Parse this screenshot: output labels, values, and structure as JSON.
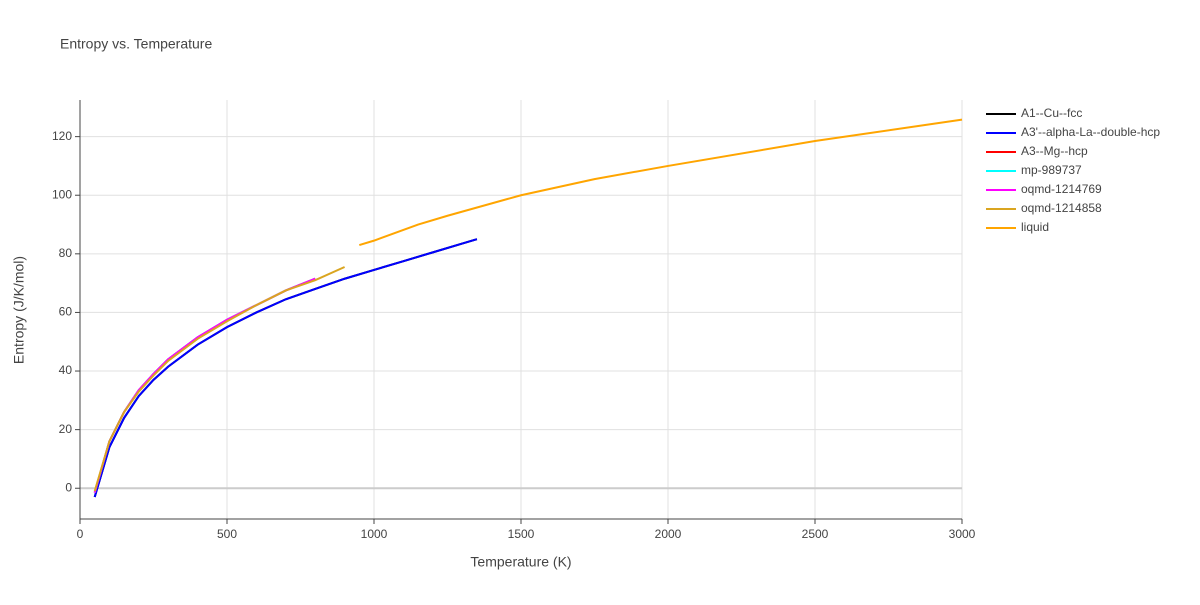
{
  "chart_data": {
    "type": "line",
    "title": "Entropy vs. Temperature",
    "x_label": "Temperature (K)",
    "y_label": "Entropy (J/K/mol)",
    "xlim": [
      0,
      3000
    ],
    "xticks": [
      0,
      500,
      1000,
      1500,
      2000,
      2500,
      3000
    ],
    "ylim": [
      -10.5,
      132.5
    ],
    "yticks": [
      0,
      20,
      40,
      60,
      80,
      100,
      120
    ],
    "grid": true,
    "legend": "right",
    "series": [
      {
        "name": "A1--Cu--fcc",
        "color": "#000000",
        "x": [
          50,
          100,
          150,
          200,
          250,
          300,
          400,
          500,
          600,
          700,
          800,
          900,
          1000,
          1100,
          1200,
          1300,
          1350
        ],
        "values": [
          -3,
          14,
          24,
          31.5,
          37,
          41.5,
          49,
          55,
          60,
          64.5,
          68,
          71.5,
          74.5,
          77.5,
          80.5,
          83.5,
          85
        ]
      },
      {
        "name": "A3'--alpha-La--double-hcp",
        "color": "#0000ff",
        "x": [
          50,
          100,
          150,
          200,
          250,
          300,
          400,
          500,
          600,
          700,
          800,
          900,
          1000,
          1100,
          1200,
          1300,
          1350
        ],
        "values": [
          -3,
          14,
          24,
          31.5,
          37,
          41.5,
          49,
          55,
          60,
          64.5,
          68,
          71.5,
          74.5,
          77.5,
          80.5,
          83.5,
          85
        ]
      },
      {
        "name": "A3--Mg--hcp",
        "color": "#ff0000",
        "x": [
          50,
          100,
          150,
          200,
          250,
          300,
          400,
          500,
          600,
          700,
          800
        ],
        "values": [
          -1.5,
          16,
          26,
          33.5,
          39,
          44,
          51.5,
          57.5,
          62.5,
          67.5,
          71.5
        ]
      },
      {
        "name": "mp-989737",
        "color": "#00ffff",
        "x": [
          50,
          100,
          150,
          200,
          250,
          300,
          400,
          500,
          600,
          700,
          800
        ],
        "values": [
          -1.5,
          16,
          26,
          33.5,
          39,
          44,
          51.5,
          57.5,
          62.5,
          67.5,
          71.5
        ]
      },
      {
        "name": "oqmd-1214769",
        "color": "#ff00ff",
        "x": [
          50,
          100,
          150,
          200,
          250,
          300,
          400,
          500,
          600,
          700,
          800
        ],
        "values": [
          -1.5,
          16,
          26,
          33.5,
          39,
          44,
          51.5,
          57.5,
          62.5,
          67.5,
          71.5
        ]
      },
      {
        "name": "oqmd-1214858",
        "color": "#daa520",
        "x": [
          50,
          100,
          150,
          200,
          250,
          300,
          400,
          500,
          600,
          700,
          800,
          900
        ],
        "values": [
          -1,
          16,
          26,
          33,
          38.5,
          43.5,
          51,
          57,
          62.5,
          67.5,
          71,
          75.5
        ]
      },
      {
        "name": "liquid",
        "color": "#ffa500",
        "x": [
          950,
          1000,
          1150,
          1250,
          1500,
          1750,
          2000,
          2500,
          3000
        ],
        "values": [
          83,
          84.5,
          90,
          93,
          100,
          105.5,
          110,
          118.5,
          125.8
        ]
      }
    ]
  }
}
